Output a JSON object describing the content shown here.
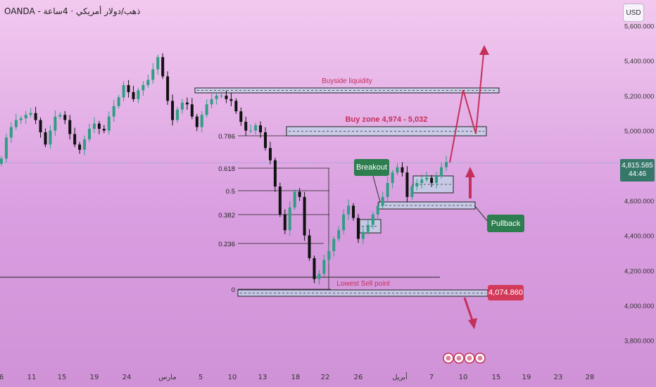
{
  "header": {
    "title": "OANDA - ذهب/دولار أمريكي · 4ساعة",
    "currency_button": "USD"
  },
  "price_badge": {
    "value": "4,815.585",
    "countdown": "44:46"
  },
  "lowest_badge": "4,074.860",
  "annotations": {
    "buyside": "Buyside liquidity",
    "buy_zone": "Buy zone 4,974 - 5,032",
    "breakout": "Breakout",
    "pullback": "Pullback",
    "lowest_sell": "Lowest Sell point"
  },
  "fib_labels": [
    "0.786",
    "0.618",
    "0.5",
    "0.382",
    "0.236",
    "0"
  ],
  "colors": {
    "up_candle": "#2f9e84",
    "down_candle": "#111111",
    "annotation_red": "#c4305a",
    "callout_green": "#2e7d4f",
    "zone_fill": "#c3cfe6"
  },
  "chart_data": {
    "type": "candlestick",
    "symbol": "OANDA XAU/USD 4H",
    "ylim": [
      3700,
      5700
    ],
    "y_ticks": [
      "5,600.000",
      "5,400.000",
      "5,200.000",
      "5,000.000",
      "4,600.000",
      "4,400.000",
      "4,200.000",
      "4,000.000",
      "3,800.000"
    ],
    "x_ticks": [
      "6",
      "11",
      "15",
      "19",
      "24",
      "مارس",
      "5",
      "10",
      "13",
      "18",
      "22",
      "26",
      "أبريل",
      "7",
      "10",
      "15",
      "19",
      "23",
      "28"
    ],
    "current_price": 4815.585,
    "lowest_sell_point": 4074.86,
    "buy_zone": [
      4974,
      5032
    ],
    "series": [
      {
        "values": [
          4840,
          4960,
          5020,
          5060,
          5070,
          5090,
          5100,
          5060,
          4990,
          4920,
          5000,
          5080,
          5090,
          5060,
          4980,
          4920,
          4890,
          4950,
          5010,
          5040,
          5010,
          5000,
          5080,
          5140,
          5190,
          5260,
          5220,
          5180,
          5230,
          5260,
          5290,
          5350,
          5420,
          5310,
          5170,
          5060,
          5120,
          5160,
          5150,
          5080,
          5020,
          5090,
          5150,
          5180,
          5200,
          5200,
          5180,
          5170,
          5110,
          5050,
          5000,
          5000,
          5030,
          4990,
          4900,
          4830,
          4680,
          4520,
          4430,
          4560,
          4650,
          4620,
          4400,
          4270,
          4150,
          4180,
          4260,
          4310,
          4380,
          4430,
          4520,
          4570,
          4500,
          4380,
          4420,
          4460,
          4520,
          4570,
          4620,
          4700,
          4760,
          4790,
          4760,
          4620,
          4680,
          4700,
          4720,
          4730,
          4700,
          4740,
          4790,
          4820
        ]
      }
    ]
  }
}
